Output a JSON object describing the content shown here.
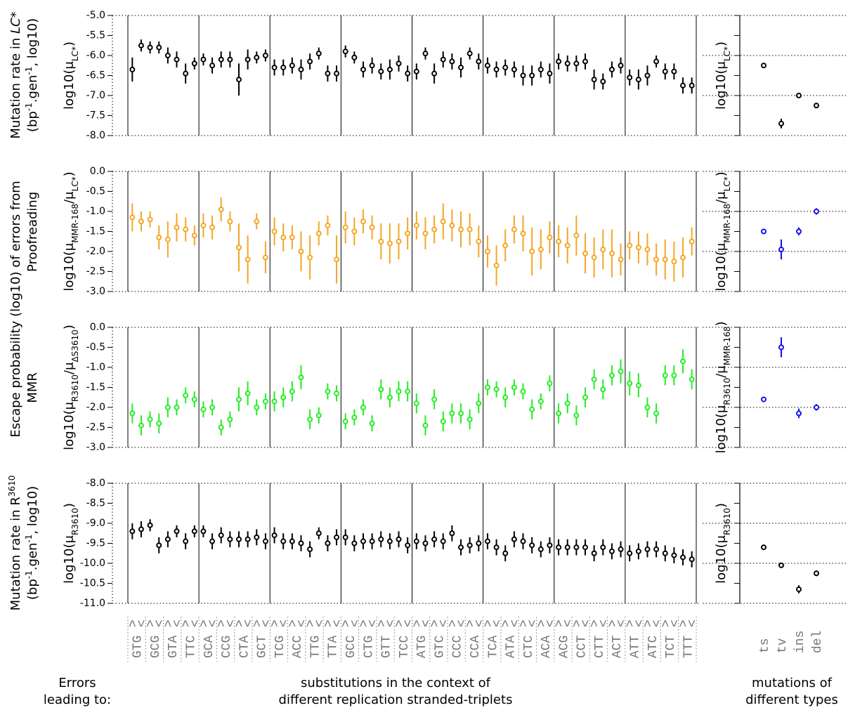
{
  "labels": {
    "panel1": [
      "Mutation rate in ",
      "LC*",
      "(bp",
      "-1",
      ".gen",
      "-1",
      ", log10)"
    ],
    "shared": "Escape probability (log10) of errors from",
    "panel2": "Proofreading",
    "panel3": "MMR",
    "panel4": [
      "Mutation rate in R",
      "3610",
      "(bp",
      "-1",
      ".gen",
      "-1",
      ", log10)"
    ],
    "left_footer": [
      "Errors",
      "leading to:"
    ],
    "middle_footer": [
      "substitutions in the context of",
      "different replication stranded-triplets"
    ],
    "right_footer": [
      "mutations of",
      "different types"
    ]
  },
  "chart_data": [
    {
      "type": "errorbar",
      "triplets": [
        "GTG",
        "GCG",
        "GTA",
        "TTC",
        "GCA",
        "CCG",
        "CTA",
        "GCT",
        "TCG",
        "ACC",
        "TTG",
        "TTA",
        "GCC",
        "CTG",
        "GTT",
        "TCC",
        "ATG",
        "GTC",
        "CCC",
        "CCA",
        "TCA",
        "ATA",
        "CTC",
        "ACA",
        "ACG",
        "CCT",
        "CTT",
        "ACT",
        "ATT",
        "ATC",
        "TCT",
        "TTT"
      ],
      "categories": [
        ">",
        "<",
        ">",
        "<",
        ">",
        "<",
        ">",
        "<",
        ">",
        "<",
        ">",
        "<",
        ">",
        "<",
        ">",
        "<",
        ">",
        "<",
        ">",
        "<",
        ">",
        "<",
        ">",
        "<",
        ">",
        "<",
        ">",
        "<",
        ">",
        "<",
        ">",
        "<",
        ">",
        "<",
        ">",
        "<",
        ">",
        "<",
        ">",
        "<",
        ">",
        "<",
        ">",
        "<",
        ">",
        "<",
        ">",
        "<",
        ">",
        "<",
        ">",
        "<",
        ">",
        "<",
        ">",
        "<",
        ">",
        "<",
        ">",
        "<",
        ">",
        "<",
        ">",
        "<"
      ],
      "panels": [
        {
          "ylabel": [
            "log10(μ",
            "LC*",
            ")"
          ],
          "color": "#000000",
          "ylim": [
            -8,
            -5
          ],
          "yticks": [
            {
              "value": -5,
              "label": "-5.0"
            },
            -5.5,
            {
              "value": -6,
              "label": "-6.0"
            },
            -6.5,
            {
              "value": -7,
              "label": "-7.0"
            },
            -7.5,
            {
              "value": -8,
              "label": "-8.0"
            }
          ],
          "values": [
            -6.35,
            -5.75,
            -5.8,
            -5.8,
            -6.0,
            -6.1,
            -6.45,
            -6.2,
            -6.1,
            -6.25,
            -6.1,
            -6.1,
            -6.6,
            -6.1,
            -6.05,
            -6.0,
            -6.3,
            -6.3,
            -6.25,
            -6.35,
            -6.15,
            -5.95,
            -6.45,
            -6.45,
            -5.9,
            -6.05,
            -6.35,
            -6.25,
            -6.4,
            -6.35,
            -6.2,
            -6.45,
            -6.4,
            -5.95,
            -6.45,
            -6.1,
            -6.15,
            -6.3,
            -5.95,
            -6.15,
            -6.25,
            -6.35,
            -6.3,
            -6.35,
            -6.5,
            -6.5,
            -6.35,
            -6.45,
            -6.15,
            -6.2,
            -6.2,
            -6.15,
            -6.6,
            -6.65,
            -6.35,
            -6.25,
            -6.55,
            -6.6,
            -6.5,
            -6.15,
            -6.4,
            -6.4,
            -6.75,
            -6.75
          ],
          "errors": [
            0.3,
            0.15,
            0.15,
            0.15,
            0.2,
            0.2,
            0.25,
            0.15,
            0.15,
            0.2,
            0.2,
            0.2,
            0.4,
            0.25,
            0.15,
            0.15,
            0.2,
            0.2,
            0.2,
            0.25,
            0.2,
            0.15,
            0.2,
            0.2,
            0.15,
            0.15,
            0.2,
            0.2,
            0.2,
            0.25,
            0.2,
            0.2,
            0.2,
            0.15,
            0.25,
            0.2,
            0.2,
            0.25,
            0.15,
            0.2,
            0.2,
            0.2,
            0.2,
            0.2,
            0.25,
            0.25,
            0.2,
            0.25,
            0.2,
            0.2,
            0.2,
            0.2,
            0.25,
            0.2,
            0.2,
            0.2,
            0.2,
            0.25,
            0.25,
            0.15,
            0.2,
            0.2,
            0.2,
            0.2
          ]
        },
        {
          "ylabel": [
            "log10(μ",
            "MMR-168",
            "/μ",
            "LC*",
            ")"
          ],
          "color": "#f5a623",
          "ylim": [
            -3,
            0
          ],
          "yticks": [
            {
              "value": 0,
              "label": "0.0"
            },
            -0.5,
            {
              "value": -1,
              "label": "-1.0"
            },
            -1.5,
            {
              "value": -2,
              "label": "-2.0"
            },
            -2.5,
            {
              "value": -3,
              "label": "-3.0"
            }
          ],
          "values": [
            -1.15,
            -1.25,
            -1.2,
            -1.65,
            -1.7,
            -1.4,
            -1.45,
            -1.6,
            -1.35,
            -1.4,
            -0.95,
            -1.25,
            -1.9,
            -2.2,
            -1.25,
            -2.15,
            -1.5,
            -1.65,
            -1.65,
            -2.0,
            -2.15,
            -1.55,
            -1.35,
            -2.2,
            -1.4,
            -1.5,
            -1.25,
            -1.4,
            -1.75,
            -1.8,
            -1.75,
            -1.55,
            -1.35,
            -1.55,
            -1.45,
            -1.25,
            -1.35,
            -1.45,
            -1.45,
            -1.75,
            -2.0,
            -2.35,
            -1.85,
            -1.45,
            -1.55,
            -2.0,
            -1.95,
            -1.65,
            -1.75,
            -1.85,
            -1.6,
            -2.05,
            -2.15,
            -1.95,
            -2.05,
            -2.2,
            -1.85,
            -1.9,
            -1.95,
            -2.2,
            -2.2,
            -2.25,
            -2.15,
            -1.75
          ],
          "errors": [
            0.35,
            0.25,
            0.2,
            0.3,
            0.45,
            0.35,
            0.3,
            0.25,
            0.3,
            0.3,
            0.3,
            0.25,
            0.6,
            0.6,
            0.2,
            0.4,
            0.35,
            0.35,
            0.3,
            0.5,
            0.55,
            0.3,
            0.25,
            0.6,
            0.4,
            0.35,
            0.3,
            0.3,
            0.45,
            0.5,
            0.45,
            0.4,
            0.35,
            0.4,
            0.35,
            0.45,
            0.4,
            0.45,
            0.4,
            0.4,
            0.4,
            0.5,
            0.4,
            0.35,
            0.45,
            0.6,
            0.5,
            0.4,
            0.4,
            0.45,
            0.5,
            0.5,
            0.5,
            0.5,
            0.6,
            0.4,
            0.35,
            0.4,
            0.4,
            0.4,
            0.5,
            0.5,
            0.5,
            0.35
          ]
        },
        {
          "ylabel": [
            "log10(μ",
            "R3610",
            "/μ",
            "ΔS3610",
            ")"
          ],
          "color": "#22ee22",
          "ylim": [
            -3,
            0
          ],
          "yticks": [
            {
              "value": 0,
              "label": "0.0"
            },
            -0.5,
            {
              "value": -1,
              "label": "-1.0"
            },
            -1.5,
            {
              "value": -2,
              "label": "-2.0"
            },
            -2.5,
            {
              "value": -3,
              "label": "-3.0"
            }
          ],
          "values": [
            -2.15,
            -2.45,
            -2.3,
            -2.4,
            -2.0,
            -2.0,
            -1.7,
            -1.8,
            -2.05,
            -2.0,
            -2.5,
            -2.3,
            -1.8,
            -1.65,
            -2.0,
            -1.85,
            -1.85,
            -1.75,
            -1.6,
            -1.25,
            -2.3,
            -2.2,
            -1.6,
            -1.65,
            -2.35,
            -2.25,
            -2.0,
            -2.4,
            -1.55,
            -1.75,
            -1.6,
            -1.6,
            -1.9,
            -2.45,
            -1.8,
            -2.35,
            -2.15,
            -2.15,
            -2.3,
            -1.9,
            -1.5,
            -1.55,
            -1.75,
            -1.5,
            -1.6,
            -2.05,
            -1.85,
            -1.4,
            -2.15,
            -1.9,
            -2.2,
            -1.75,
            -1.3,
            -1.55,
            -1.2,
            -1.1,
            -1.4,
            -1.45,
            -2.0,
            -2.15,
            -1.2,
            -1.2,
            -0.85,
            -1.3
          ],
          "errors": [
            0.25,
            0.25,
            0.2,
            0.25,
            0.25,
            0.2,
            0.2,
            0.2,
            0.2,
            0.2,
            0.2,
            0.2,
            0.3,
            0.3,
            0.2,
            0.2,
            0.25,
            0.25,
            0.25,
            0.3,
            0.25,
            0.2,
            0.2,
            0.2,
            0.2,
            0.2,
            0.2,
            0.2,
            0.25,
            0.25,
            0.25,
            0.25,
            0.25,
            0.25,
            0.25,
            0.25,
            0.25,
            0.25,
            0.25,
            0.25,
            0.2,
            0.2,
            0.25,
            0.2,
            0.2,
            0.25,
            0.2,
            0.2,
            0.25,
            0.25,
            0.25,
            0.25,
            0.25,
            0.25,
            0.25,
            0.3,
            0.3,
            0.3,
            0.25,
            0.25,
            0.25,
            0.25,
            0.3,
            0.25
          ]
        },
        {
          "ylabel": [
            "log10(μ",
            "R3610",
            ")"
          ],
          "color": "#000000",
          "ylim": [
            -11,
            -8
          ],
          "yticks": [
            {
              "value": -8,
              "label": "-8.0"
            },
            -8.5,
            {
              "value": -9,
              "label": "-9.0"
            },
            -9.5,
            {
              "value": -10,
              "label": "-10.0"
            },
            -10.5,
            {
              "value": -11,
              "label": "-11.0"
            }
          ],
          "values": [
            -9.2,
            -9.15,
            -9.05,
            -9.55,
            -9.4,
            -9.2,
            -9.45,
            -9.2,
            -9.2,
            -9.45,
            -9.3,
            -9.4,
            -9.4,
            -9.4,
            -9.35,
            -9.45,
            -9.3,
            -9.45,
            -9.45,
            -9.5,
            -9.65,
            -9.25,
            -9.5,
            -9.35,
            -9.35,
            -9.5,
            -9.45,
            -9.45,
            -9.4,
            -9.45,
            -9.4,
            -9.55,
            -9.45,
            -9.5,
            -9.4,
            -9.45,
            -9.25,
            -9.6,
            -9.55,
            -9.5,
            -9.45,
            -9.6,
            -9.75,
            -9.4,
            -9.45,
            -9.55,
            -9.65,
            -9.55,
            -9.6,
            -9.6,
            -9.6,
            -9.6,
            -9.75,
            -9.6,
            -9.7,
            -9.65,
            -9.75,
            -9.7,
            -9.65,
            -9.65,
            -9.75,
            -9.8,
            -9.85,
            -9.9
          ],
          "errors": [
            0.2,
            0.2,
            0.15,
            0.2,
            0.2,
            0.15,
            0.2,
            0.15,
            0.15,
            0.2,
            0.2,
            0.2,
            0.2,
            0.2,
            0.2,
            0.2,
            0.2,
            0.2,
            0.2,
            0.2,
            0.2,
            0.15,
            0.2,
            0.2,
            0.2,
            0.2,
            0.2,
            0.2,
            0.2,
            0.2,
            0.2,
            0.2,
            0.2,
            0.2,
            0.2,
            0.2,
            0.2,
            0.2,
            0.2,
            0.2,
            0.2,
            0.2,
            0.2,
            0.2,
            0.2,
            0.2,
            0.2,
            0.2,
            0.2,
            0.2,
            0.2,
            0.2,
            0.2,
            0.2,
            0.2,
            0.2,
            0.2,
            0.2,
            0.2,
            0.2,
            0.2,
            0.2,
            0.2,
            0.2
          ]
        }
      ]
    },
    {
      "type": "errorbar",
      "categories": [
        "ts",
        "tv",
        "ins",
        "del"
      ],
      "panels": [
        {
          "ylabel": [
            "log10(μ",
            "LC*",
            ")"
          ],
          "color": "#000000",
          "ylim": [
            -8,
            -5
          ],
          "yticks": [
            -5,
            -5.5,
            -6,
            -6.5,
            -7,
            -7.5,
            -8
          ],
          "values": [
            -6.25,
            -7.7,
            -7.0,
            -7.25
          ],
          "errors": [
            0.03,
            0.12,
            0.05,
            0.06
          ]
        },
        {
          "ylabel": [
            "log10(μ",
            "MMR-168",
            "/μ",
            "LC*",
            ")"
          ],
          "color": "#1010ee",
          "ylim": [
            -3,
            0
          ],
          "yticks": [
            0,
            -0.5,
            -1,
            -1.5,
            -2,
            -2.5,
            -3
          ],
          "values": [
            -1.5,
            -1.95,
            -1.5,
            -1.0
          ],
          "errors": [
            0.05,
            0.25,
            0.1,
            0.08
          ]
        },
        {
          "ylabel": [
            "log10(μ",
            "R3610",
            "/μ",
            "MMR-168",
            ")"
          ],
          "color": "#1010ee",
          "ylim": [
            -3,
            0
          ],
          "yticks": [
            0,
            -0.5,
            -1,
            -1.5,
            -2,
            -2.5,
            -3
          ],
          "values": [
            -1.8,
            -0.5,
            -2.15,
            -2.0
          ],
          "errors": [
            0.05,
            0.25,
            0.12,
            0.08
          ]
        },
        {
          "ylabel": [
            "log10(μ",
            "R3610",
            ")"
          ],
          "color": "#000000",
          "ylim": [
            -11,
            -8
          ],
          "yticks": [
            -8,
            -8.5,
            -9,
            -9.5,
            -10,
            -10.5,
            -11
          ],
          "values": [
            -9.6,
            -10.05,
            -10.65,
            -10.25
          ],
          "errors": [
            0.03,
            0.05,
            0.1,
            0.07
          ]
        }
      ]
    }
  ]
}
